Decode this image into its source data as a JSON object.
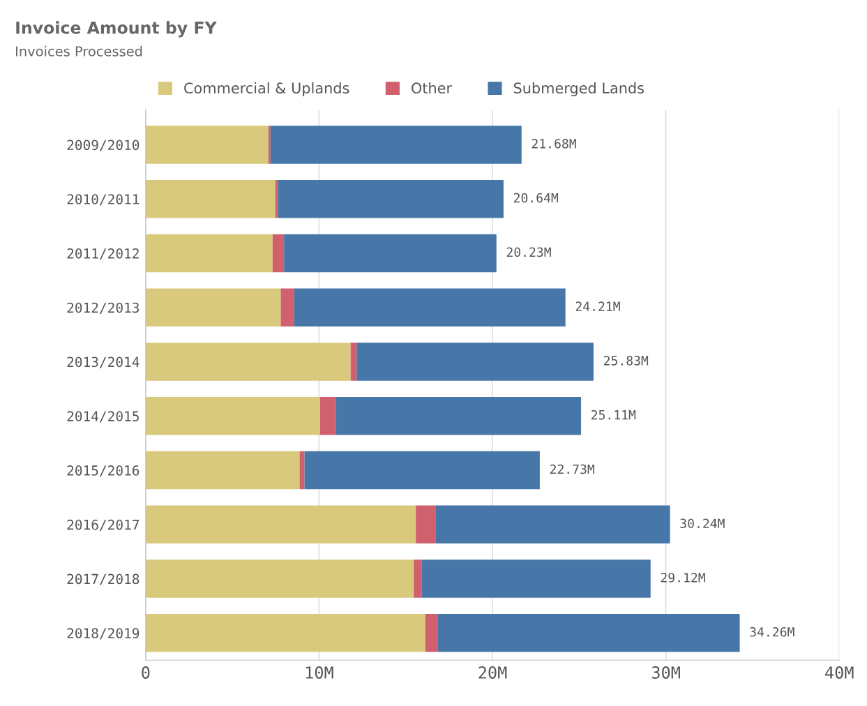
{
  "chart_data": {
    "type": "bar",
    "title": "Invoice Amount by FY",
    "subtitle": "Invoices Processed",
    "orientation": "horizontal",
    "stacked": true,
    "categories": [
      "2009/2010",
      "2010/2011",
      "2011/2012",
      "2012/2013",
      "2013/2014",
      "2014/2015",
      "2015/2016",
      "2016/2017",
      "2017/2018",
      "2018/2019"
    ],
    "series": [
      {
        "name": "Commercial & Uplands",
        "color": "#d9c97c",
        "values": [
          7.08,
          7.48,
          7.32,
          7.79,
          11.82,
          10.06,
          8.88,
          15.58,
          15.46,
          16.13
        ]
      },
      {
        "name": "Other",
        "color": "#d0606e",
        "values": [
          0.12,
          0.15,
          0.66,
          0.78,
          0.35,
          0.9,
          0.28,
          1.13,
          0.47,
          0.7
        ]
      },
      {
        "name": "Submerged Lands",
        "color": "#4677a8",
        "values": [
          14.48,
          13.01,
          12.25,
          15.64,
          13.66,
          14.15,
          13.57,
          13.53,
          13.19,
          17.43
        ]
      }
    ],
    "totals": [
      "21.68M",
      "20.64M",
      "20.23M",
      "24.21M",
      "25.83M",
      "25.11M",
      "22.73M",
      "30.24M",
      "29.12M",
      "34.26M"
    ],
    "xlim": [
      0,
      40
    ],
    "xticks": [
      {
        "value": 0,
        "label": "0"
      },
      {
        "value": 10,
        "label": "10M"
      },
      {
        "value": 20,
        "label": "20M"
      },
      {
        "value": 30,
        "label": "30M"
      },
      {
        "value": 40,
        "label": "40M"
      }
    ],
    "grid": "x",
    "legend": "top left"
  }
}
